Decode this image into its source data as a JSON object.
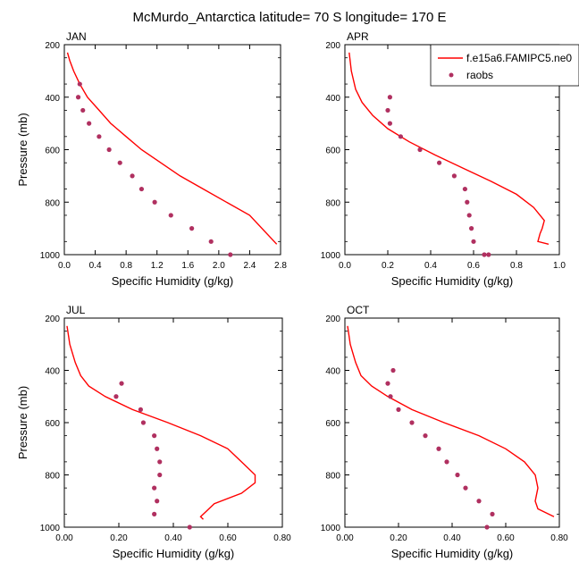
{
  "figure_title": "McMurdo_Antarctica  latitude= 70 S longitude= 170 E",
  "colors": {
    "model": "#ff0000",
    "obs": "#b03060",
    "axis": "#000000"
  },
  "legend": {
    "placement": "top-right of APR panel",
    "model_label": "f.e15a6.FAMIPC5.ne0",
    "obs_label": "raobs"
  },
  "chart_data": [
    {
      "type": "line",
      "title": "JAN",
      "xlabel": "Specific Humidity (g/kg)",
      "ylabel": "Pressure (mb)",
      "xlim": [
        0,
        2.8
      ],
      "ylim": [
        200,
        1000
      ],
      "y_inverted": true,
      "xticks": [
        "0.0",
        "0.4",
        "0.8",
        "1.2",
        "1.6",
        "2.0",
        "2.4",
        "2.8"
      ],
      "yticks": [
        "200",
        "400",
        "600",
        "800",
        "1000"
      ],
      "series": [
        {
          "name": "f.e15a6.FAMIPC5.ne0",
          "kind": "line",
          "x": [
            0.04,
            0.07,
            0.12,
            0.2,
            0.3,
            0.45,
            0.6,
            0.8,
            1.0,
            1.25,
            1.5,
            1.8,
            2.1,
            2.4,
            2.75
          ],
          "y": [
            230,
            260,
            300,
            350,
            400,
            450,
            500,
            550,
            600,
            650,
            700,
            750,
            800,
            850,
            960
          ]
        },
        {
          "name": "raobs",
          "kind": "scatter",
          "x": [
            0.2,
            0.18,
            0.24,
            0.32,
            0.45,
            0.58,
            0.72,
            0.88,
            1.0,
            1.17,
            1.38,
            1.65,
            1.9,
            2.15
          ],
          "y": [
            350,
            400,
            450,
            500,
            550,
            600,
            650,
            700,
            750,
            800,
            850,
            900,
            950,
            1000
          ]
        }
      ]
    },
    {
      "type": "line",
      "title": "APR",
      "xlabel": "Specific Humidity (g/kg)",
      "ylabel": "",
      "xlim": [
        0,
        1.0
      ],
      "ylim": [
        200,
        1000
      ],
      "y_inverted": true,
      "xticks": [
        "0.0",
        "0.2",
        "0.4",
        "0.6",
        "0.8",
        "1.0"
      ],
      "yticks": [
        "200",
        "400",
        "600",
        "800",
        "1000"
      ],
      "series": [
        {
          "name": "f.e15a6.FAMIPC5.ne0",
          "kind": "line",
          "x": [
            0.02,
            0.03,
            0.05,
            0.08,
            0.13,
            0.2,
            0.3,
            0.42,
            0.55,
            0.68,
            0.8,
            0.88,
            0.93,
            0.92,
            0.91,
            0.9,
            0.95
          ],
          "y": [
            230,
            300,
            370,
            420,
            470,
            520,
            570,
            620,
            670,
            720,
            770,
            820,
            870,
            900,
            920,
            950,
            960
          ]
        },
        {
          "name": "raobs",
          "kind": "scatter",
          "x": [
            0.21,
            0.2,
            0.21,
            0.26,
            0.35,
            0.44,
            0.51,
            0.56,
            0.57,
            0.58,
            0.59,
            0.6,
            0.65,
            0.67
          ],
          "y": [
            400,
            450,
            500,
            550,
            600,
            650,
            700,
            750,
            800,
            850,
            900,
            950,
            1000,
            1000
          ]
        }
      ]
    },
    {
      "type": "line",
      "title": "JUL",
      "xlabel": "Specific Humidity (g/kg)",
      "ylabel": "Pressure (mb)",
      "xlim": [
        0,
        0.8
      ],
      "ylim": [
        200,
        1000
      ],
      "y_inverted": true,
      "xticks": [
        "0.00",
        "0.20",
        "0.40",
        "0.60",
        "0.80"
      ],
      "yticks": [
        "200",
        "400",
        "600",
        "800",
        "1000"
      ],
      "series": [
        {
          "name": "f.e15a6.FAMIPC5.ne0",
          "kind": "line",
          "x": [
            0.01,
            0.02,
            0.04,
            0.06,
            0.09,
            0.15,
            0.25,
            0.38,
            0.5,
            0.6,
            0.65,
            0.7,
            0.7,
            0.65,
            0.55,
            0.52,
            0.5,
            0.51
          ],
          "y": [
            230,
            300,
            370,
            420,
            460,
            500,
            550,
            600,
            650,
            700,
            750,
            800,
            830,
            870,
            910,
            940,
            960,
            970
          ]
        },
        {
          "name": "raobs",
          "kind": "scatter",
          "x": [
            0.21,
            0.19,
            0.28,
            0.29,
            0.33,
            0.34,
            0.35,
            0.35,
            0.33,
            0.34,
            0.33,
            0.46
          ],
          "y": [
            450,
            500,
            550,
            600,
            650,
            700,
            750,
            800,
            850,
            900,
            950,
            1000
          ]
        }
      ]
    },
    {
      "type": "line",
      "title": "OCT",
      "xlabel": "Specific Humidity (g/kg)",
      "ylabel": "",
      "xlim": [
        0,
        0.8
      ],
      "ylim": [
        200,
        1000
      ],
      "y_inverted": true,
      "xticks": [
        "0.00",
        "0.20",
        "0.40",
        "0.60",
        "0.80"
      ],
      "yticks": [
        "200",
        "400",
        "600",
        "800",
        "1000"
      ],
      "series": [
        {
          "name": "f.e15a6.FAMIPC5.ne0",
          "kind": "line",
          "x": [
            0.01,
            0.02,
            0.04,
            0.06,
            0.1,
            0.16,
            0.25,
            0.37,
            0.5,
            0.6,
            0.67,
            0.71,
            0.72,
            0.71,
            0.72,
            0.78
          ],
          "y": [
            230,
            300,
            370,
            420,
            460,
            500,
            550,
            600,
            650,
            700,
            750,
            800,
            850,
            900,
            930,
            960
          ]
        },
        {
          "name": "raobs",
          "kind": "scatter",
          "x": [
            0.18,
            0.16,
            0.17,
            0.2,
            0.25,
            0.3,
            0.35,
            0.38,
            0.42,
            0.45,
            0.5,
            0.55,
            0.53
          ],
          "y": [
            400,
            450,
            500,
            550,
            600,
            650,
            700,
            750,
            800,
            850,
            900,
            950,
            1000
          ]
        }
      ]
    }
  ]
}
